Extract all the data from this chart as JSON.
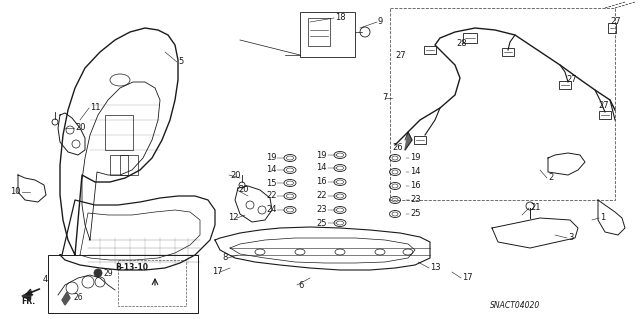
{
  "bg_color": "#ffffff",
  "diagram_code": "SNACТ04020",
  "ref_code": "B-13-10",
  "lc": "#1a1a1a",
  "lw": 0.7,
  "label_fs": 6.0
}
